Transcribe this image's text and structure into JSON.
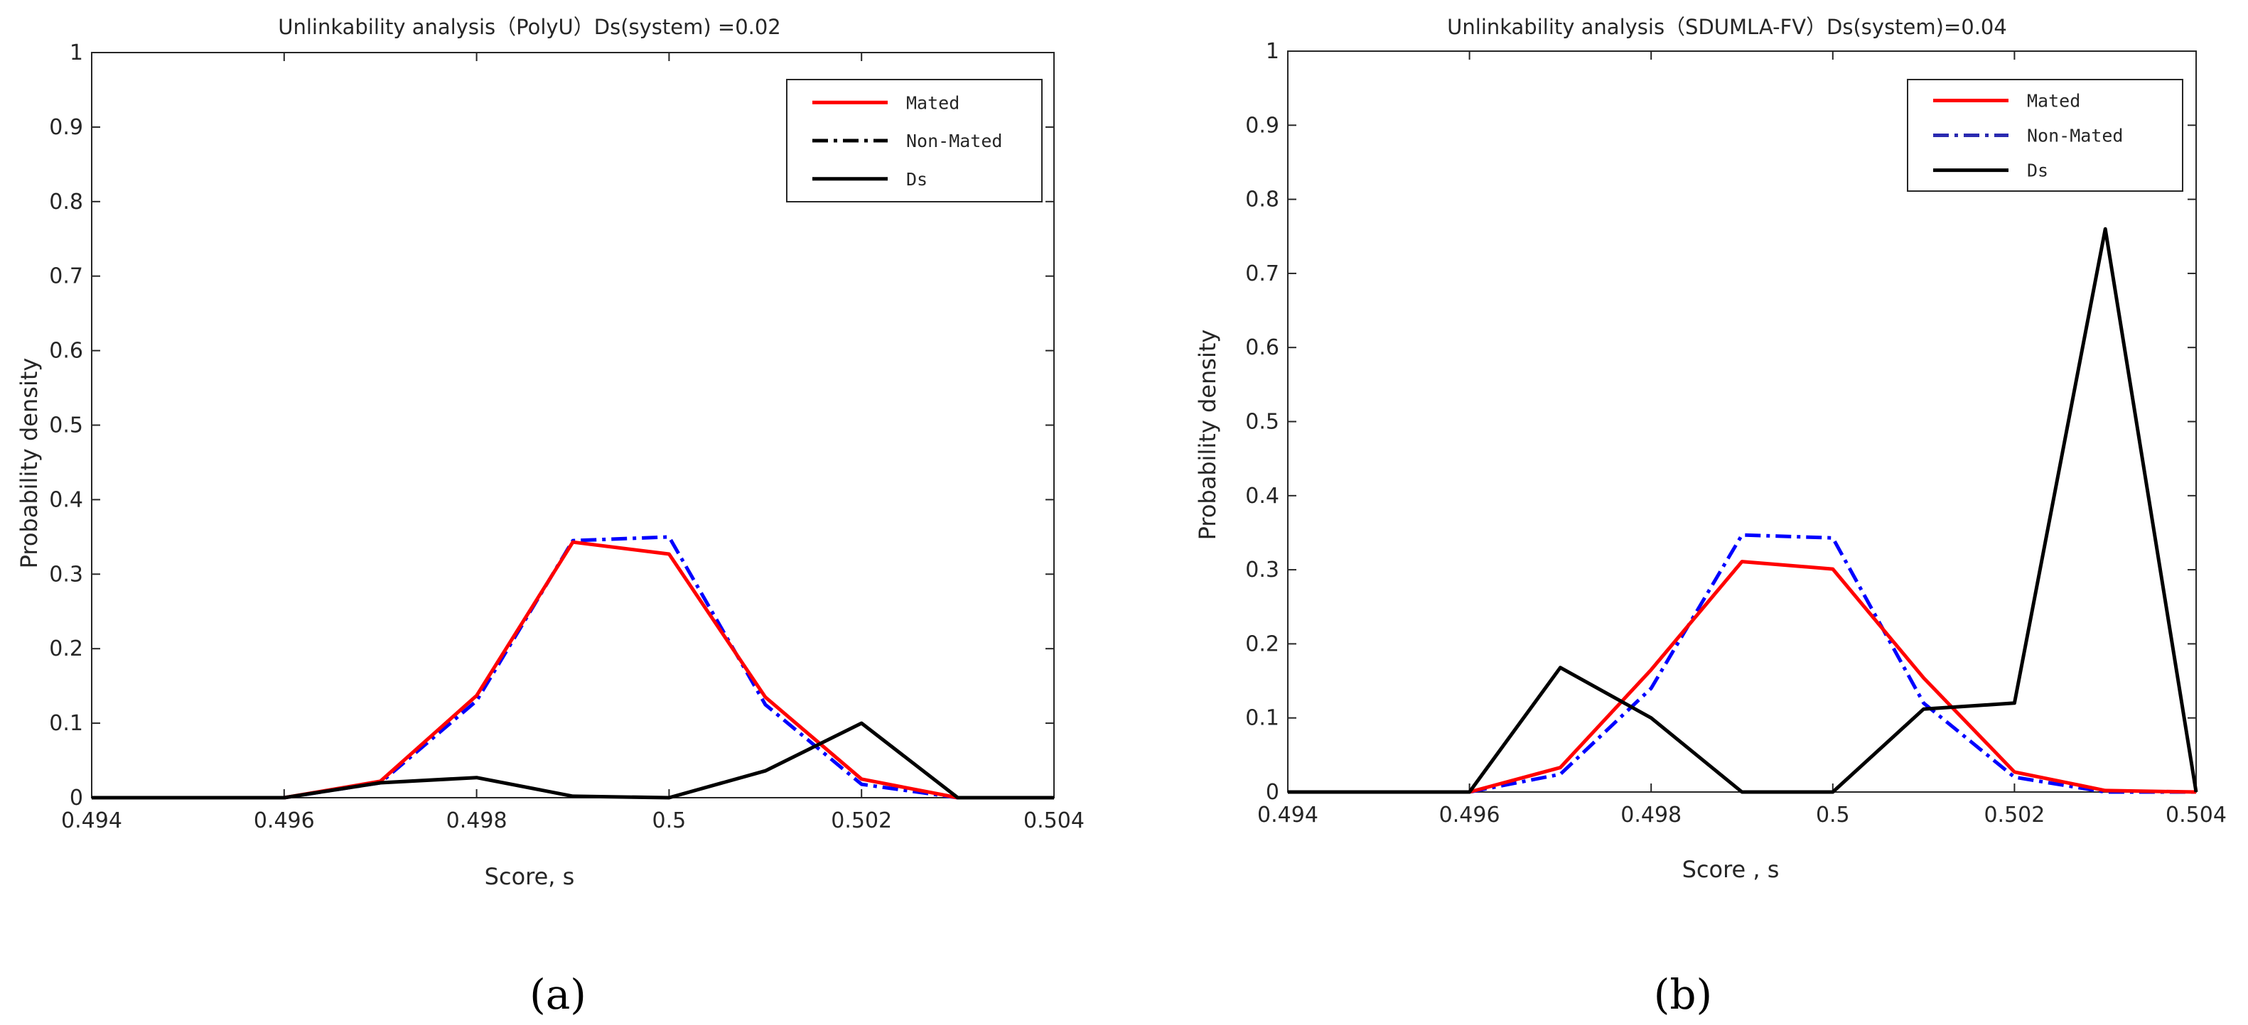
{
  "chart_data": [
    {
      "type": "line",
      "panel_label": "(a)",
      "title": "Unlinkability analysis（PolyU）Ds(system) =0.02",
      "xlabel": "Score,  s",
      "ylabel": "Probability density",
      "xlim": [
        0.494,
        0.504
      ],
      "ylim": [
        0,
        1
      ],
      "xticks": [
        0.494,
        0.496,
        0.498,
        0.5,
        0.502,
        0.504
      ],
      "xtick_labels": [
        "0.494",
        "0.496",
        "0.498",
        "0.5",
        "0.502",
        "0.504"
      ],
      "yticks": [
        0,
        0.1,
        0.2,
        0.3,
        0.4,
        0.5,
        0.6,
        0.7,
        0.8,
        0.9,
        1
      ],
      "ytick_labels": [
        "0",
        "0.1",
        "0.2",
        "0.3",
        "0.4",
        "0.5",
        "0.6",
        "0.7",
        "0.8",
        "0.9",
        "1"
      ],
      "legend_position": "top-right",
      "legend": [
        {
          "label": "Mated",
          "color": "#ff0000",
          "style": "solid"
        },
        {
          "label": "Non-Mated",
          "color": "#000000",
          "style": "dashdot"
        },
        {
          "label": "Ds",
          "color": "#000000",
          "style": "solid"
        }
      ],
      "series": [
        {
          "name": "Non-Mated",
          "color": "#0000ff",
          "style": "dashdot",
          "x": [
            0.494,
            0.495,
            0.496,
            0.497,
            0.498,
            0.499,
            0.5,
            0.501,
            0.502,
            0.503,
            0.504
          ],
          "y": [
            0,
            0,
            0,
            0.02,
            0.13,
            0.345,
            0.35,
            0.125,
            0.018,
            0,
            0
          ]
        },
        {
          "name": "Mated",
          "color": "#ff0000",
          "style": "solid",
          "x": [
            0.494,
            0.495,
            0.496,
            0.497,
            0.498,
            0.499,
            0.5,
            0.501,
            0.502,
            0.503,
            0.504
          ],
          "y": [
            0,
            0,
            0,
            0.022,
            0.137,
            0.343,
            0.327,
            0.135,
            0.025,
            0,
            0
          ]
        },
        {
          "name": "Ds",
          "color": "#000000",
          "style": "solid",
          "x": [
            0.494,
            0.495,
            0.496,
            0.497,
            0.498,
            0.499,
            0.5,
            0.501,
            0.502,
            0.503,
            0.504
          ],
          "y": [
            0,
            0,
            0,
            0.02,
            0.027,
            0.002,
            0,
            0.036,
            0.1,
            0,
            0
          ]
        }
      ]
    },
    {
      "type": "line",
      "panel_label": "(b)",
      "title": "Unlinkability analysis（SDUMLA-FV）Ds(system)=0.04",
      "xlabel": "Score , s",
      "ylabel": "Probability density",
      "xlim": [
        0.494,
        0.504
      ],
      "ylim": [
        0,
        1
      ],
      "xticks": [
        0.494,
        0.496,
        0.498,
        0.5,
        0.502,
        0.504
      ],
      "xtick_labels": [
        "0.494",
        "0.496",
        "0.498",
        "0.5",
        "0.502",
        "0.504"
      ],
      "yticks": [
        0,
        0.1,
        0.2,
        0.3,
        0.4,
        0.5,
        0.6,
        0.7,
        0.8,
        0.9,
        1
      ],
      "ytick_labels": [
        "0",
        "0.1",
        "0.2",
        "0.3",
        "0.4",
        "0.5",
        "0.6",
        "0.7",
        "0.8",
        "0.9",
        "1"
      ],
      "legend_position": "top-right",
      "legend": [
        {
          "label": "Mated",
          "color": "#ff0000",
          "style": "solid"
        },
        {
          "label": "Non-Mated",
          "color": "#2a2ab0",
          "style": "dashdot"
        },
        {
          "label": "Ds",
          "color": "#000000",
          "style": "solid"
        }
      ],
      "series": [
        {
          "name": "Non-Mated",
          "color": "#0000ff",
          "style": "dashdot",
          "x": [
            0.494,
            0.495,
            0.496,
            0.497,
            0.498,
            0.499,
            0.5,
            0.501,
            0.502,
            0.503,
            0.504
          ],
          "y": [
            0,
            0,
            0,
            0.024,
            0.14,
            0.347,
            0.343,
            0.12,
            0.02,
            0,
            0
          ]
        },
        {
          "name": "Mated",
          "color": "#ff0000",
          "style": "solid",
          "x": [
            0.494,
            0.495,
            0.496,
            0.497,
            0.498,
            0.499,
            0.5,
            0.501,
            0.502,
            0.503,
            0.504
          ],
          "y": [
            0,
            0,
            0,
            0.033,
            0.165,
            0.311,
            0.301,
            0.154,
            0.027,
            0.002,
            0
          ]
        },
        {
          "name": "Ds",
          "color": "#000000",
          "style": "solid",
          "x": [
            0.494,
            0.495,
            0.496,
            0.497,
            0.498,
            0.499,
            0.5,
            0.501,
            0.502,
            0.503,
            0.504
          ],
          "y": [
            0,
            0,
            0,
            0.168,
            0.1,
            0,
            0,
            0.112,
            0.12,
            0.76,
            0
          ]
        }
      ]
    }
  ]
}
